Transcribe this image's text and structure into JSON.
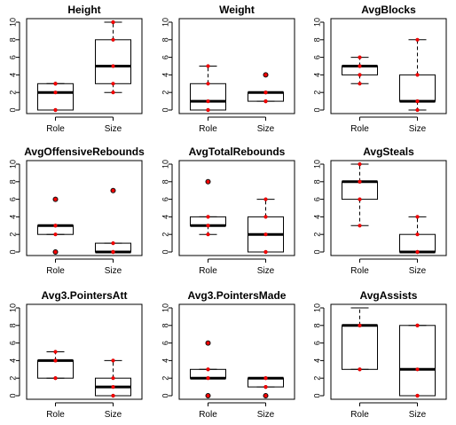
{
  "chart_data": [
    {
      "type": "box",
      "title": "Height",
      "categories": [
        "Role",
        "Size"
      ],
      "ylim": [
        0,
        10
      ],
      "yticks": [
        0,
        2,
        4,
        6,
        8,
        10
      ],
      "boxes": [
        {
          "min": 0,
          "q1": 0,
          "median": 2,
          "q3": 3,
          "max": 3
        },
        {
          "min": 2,
          "q1": 3,
          "median": 5,
          "q3": 8,
          "max": 10
        }
      ],
      "points": [
        [
          0,
          0,
          2,
          3,
          3,
          3
        ],
        [
          2,
          3,
          5,
          8,
          10,
          10
        ]
      ],
      "outliers": [
        [],
        []
      ]
    },
    {
      "type": "box",
      "title": "Weight",
      "categories": [
        "Role",
        "Size"
      ],
      "ylim": [
        0,
        10
      ],
      "yticks": [
        0,
        2,
        4,
        6,
        8,
        10
      ],
      "boxes": [
        {
          "min": 0,
          "q1": 0,
          "median": 1,
          "q3": 3,
          "max": 5
        },
        {
          "min": 1,
          "q1": 1,
          "median": 2,
          "q3": 2,
          "max": 2
        }
      ],
      "points": [
        [
          0,
          0,
          1,
          3,
          5
        ],
        [
          1,
          1,
          2,
          2,
          2
        ]
      ],
      "outliers": [
        [],
        [
          4
        ]
      ]
    },
    {
      "type": "box",
      "title": "AvgBlocks",
      "categories": [
        "Role",
        "Size"
      ],
      "ylim": [
        0,
        10
      ],
      "yticks": [
        0,
        2,
        4,
        6,
        8,
        10
      ],
      "boxes": [
        {
          "min": 3,
          "q1": 4,
          "median": 5,
          "q3": 5,
          "max": 6
        },
        {
          "min": 0,
          "q1": 1,
          "median": 1,
          "q3": 4,
          "max": 8
        }
      ],
      "points": [
        [
          3,
          4,
          5,
          5,
          6
        ],
        [
          0,
          1,
          1,
          4,
          8
        ]
      ],
      "outliers": [
        [],
        []
      ]
    },
    {
      "type": "box",
      "title": "AvgOffensiveRebounds",
      "categories": [
        "Role",
        "Size"
      ],
      "ylim": [
        0,
        10
      ],
      "yticks": [
        0,
        2,
        4,
        6,
        8,
        10
      ],
      "boxes": [
        {
          "min": 2,
          "q1": 2,
          "median": 3,
          "q3": 3,
          "max": 3
        },
        {
          "min": 0,
          "q1": 0,
          "median": 0,
          "q3": 1,
          "max": 1
        }
      ],
      "points": [
        [
          2,
          3,
          3,
          3
        ],
        [
          0,
          0,
          0,
          0,
          1
        ]
      ],
      "outliers": [
        [
          0,
          6
        ],
        [
          7
        ]
      ]
    },
    {
      "type": "box",
      "title": "AvgTotalRebounds",
      "categories": [
        "Role",
        "Size"
      ],
      "ylim": [
        0,
        10
      ],
      "yticks": [
        0,
        2,
        4,
        6,
        8,
        10
      ],
      "boxes": [
        {
          "min": 2,
          "q1": 3,
          "median": 3,
          "q3": 4,
          "max": 4
        },
        {
          "min": 0,
          "q1": 0,
          "median": 2,
          "q3": 4,
          "max": 6
        }
      ],
      "points": [
        [
          2,
          3,
          3,
          4
        ],
        [
          0,
          0,
          2,
          4,
          6
        ]
      ],
      "outliers": [
        [
          8
        ],
        []
      ]
    },
    {
      "type": "box",
      "title": "AvgSteals",
      "categories": [
        "Role",
        "Size"
      ],
      "ylim": [
        0,
        10
      ],
      "yticks": [
        0,
        2,
        4,
        6,
        8,
        10
      ],
      "boxes": [
        {
          "min": 3,
          "q1": 6,
          "median": 8,
          "q3": 8,
          "max": 10
        },
        {
          "min": 0,
          "q1": 0,
          "median": 0,
          "q3": 2,
          "max": 4
        }
      ],
      "points": [
        [
          3,
          6,
          8,
          8,
          10
        ],
        [
          0,
          0,
          0,
          2,
          4
        ]
      ],
      "outliers": [
        [],
        []
      ]
    },
    {
      "type": "box",
      "title": "Avg3.PointersAtt",
      "categories": [
        "Role",
        "Size"
      ],
      "ylim": [
        0,
        10
      ],
      "yticks": [
        0,
        2,
        4,
        6,
        8,
        10
      ],
      "boxes": [
        {
          "min": 2,
          "q1": 2,
          "median": 4,
          "q3": 4,
          "max": 5
        },
        {
          "min": 0,
          "q1": 0,
          "median": 1,
          "q3": 2,
          "max": 4
        }
      ],
      "points": [
        [
          2,
          2,
          4,
          4,
          5
        ],
        [
          0,
          0,
          1,
          2,
          4
        ]
      ],
      "outliers": [
        [],
        []
      ]
    },
    {
      "type": "box",
      "title": "Avg3.PointersMade",
      "categories": [
        "Role",
        "Size"
      ],
      "ylim": [
        0,
        10
      ],
      "yticks": [
        0,
        2,
        4,
        6,
        8,
        10
      ],
      "boxes": [
        {
          "min": 2,
          "q1": 2,
          "median": 2,
          "q3": 3,
          "max": 3
        },
        {
          "min": 1,
          "q1": 1,
          "median": 2,
          "q3": 2,
          "max": 2
        }
      ],
      "points": [
        [
          2,
          2,
          3,
          3
        ],
        [
          1,
          1,
          2,
          2,
          2
        ]
      ],
      "outliers": [
        [
          0,
          6
        ],
        [
          0
        ]
      ]
    },
    {
      "type": "box",
      "title": "AvgAssists",
      "categories": [
        "Role",
        "Size"
      ],
      "ylim": [
        0,
        10
      ],
      "yticks": [
        0,
        2,
        4,
        6,
        8,
        10
      ],
      "boxes": [
        {
          "min": 3,
          "q1": 3,
          "median": 8,
          "q3": 8,
          "max": 10
        },
        {
          "min": 0,
          "q1": 0,
          "median": 3,
          "q3": 8,
          "max": 8
        }
      ],
      "points": [
        [
          3,
          3,
          8,
          8
        ],
        [
          0,
          0,
          3,
          8,
          8
        ]
      ],
      "outliers": [
        [],
        []
      ]
    }
  ],
  "colors": {
    "points": "#ff0000",
    "point_outline": "#cc0000",
    "lines": "#000000"
  }
}
